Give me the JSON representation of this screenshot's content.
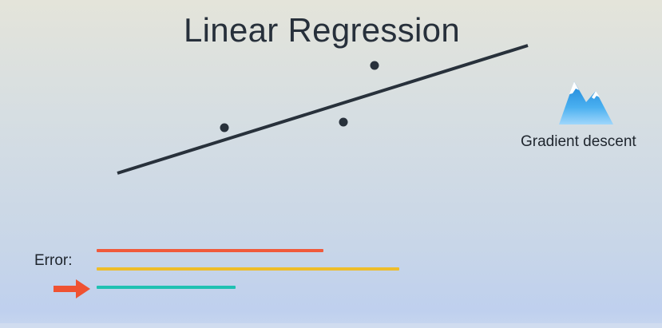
{
  "title": "Linear Regression",
  "gradient": {
    "label": "Gradient descent",
    "icon": "mountain-icon"
  },
  "error": {
    "label": "Error:",
    "bars": [
      {
        "name": "error-bar-1",
        "color": "#f05a3c",
        "length": 0.75
      },
      {
        "name": "error-bar-2",
        "color": "#eebd2b",
        "length": 1.0
      },
      {
        "name": "error-bar-3",
        "color": "#1fc1b2",
        "length": 0.46
      }
    ],
    "selected_index": 2,
    "arrow_color": "#ef5232",
    "arrow_icon": "right-arrow-icon"
  },
  "colors": {
    "line": "#28313b",
    "points": "#28313b",
    "mountain": "#3a9fe8",
    "snow": "#ffffff"
  }
}
